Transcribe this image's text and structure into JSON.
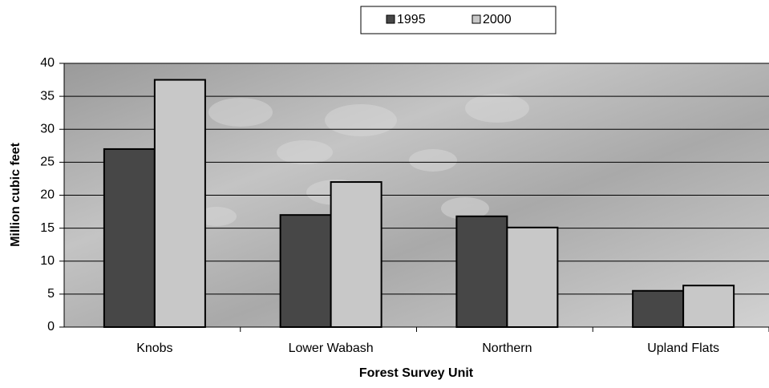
{
  "chart_data": {
    "type": "bar",
    "categories": [
      "Knobs",
      "Lower Wabash",
      "Northern",
      "Upland Flats"
    ],
    "series": [
      {
        "name": "1995",
        "color": "#474747",
        "values": [
          27,
          17,
          16.8,
          5.5
        ]
      },
      {
        "name": "2000",
        "color": "#c8c8c8",
        "values": [
          37.5,
          22,
          15.1,
          6.3
        ]
      }
    ],
    "ylim": [
      0,
      40
    ],
    "yticks": [
      0,
      5,
      10,
      15,
      20,
      25,
      30,
      35,
      40
    ],
    "y_label": "Million  cubic  feet",
    "x_label": "Forest  Survey  Unit",
    "grid": true,
    "legend": "top"
  }
}
